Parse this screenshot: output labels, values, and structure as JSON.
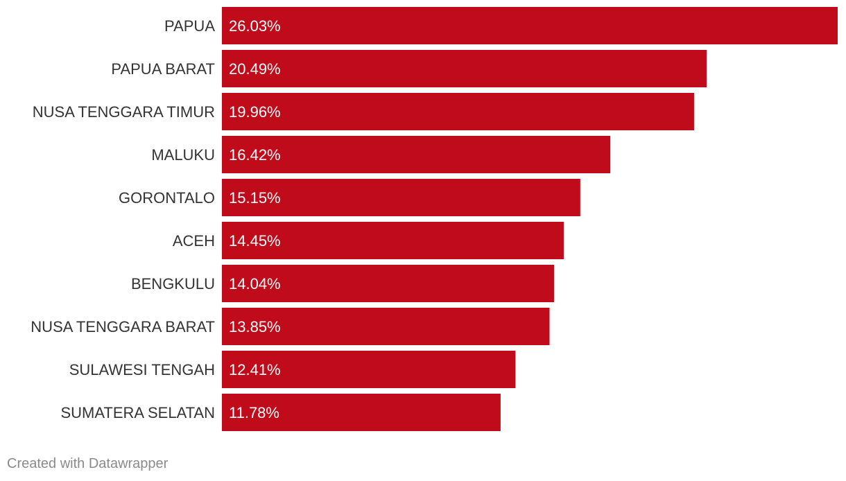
{
  "chart_data": {
    "type": "bar",
    "orientation": "horizontal",
    "categories": [
      "PAPUA",
      "PAPUA BARAT",
      "NUSA TENGGARA TIMUR",
      "MALUKU",
      "GORONTALO",
      "ACEH",
      "BENGKULU",
      "NUSA TENGGARA BARAT",
      "SULAWESI TENGAH",
      "SUMATERA SELATAN"
    ],
    "values": [
      26.03,
      20.49,
      19.96,
      16.42,
      15.15,
      14.45,
      14.04,
      13.85,
      12.41,
      11.78
    ],
    "value_labels": [
      "26.03%",
      "20.49%",
      "19.96%",
      "16.42%",
      "15.15%",
      "14.45%",
      "14.04%",
      "13.85%",
      "12.41%",
      "11.78%"
    ],
    "value_suffix": "%",
    "title": "",
    "xlabel": "",
    "ylabel": "",
    "xlim": [
      0,
      26.03
    ],
    "grid": false,
    "legend": "none",
    "bar_color": "#c00b1b"
  },
  "footer": {
    "credit": "Created with Datawrapper"
  }
}
